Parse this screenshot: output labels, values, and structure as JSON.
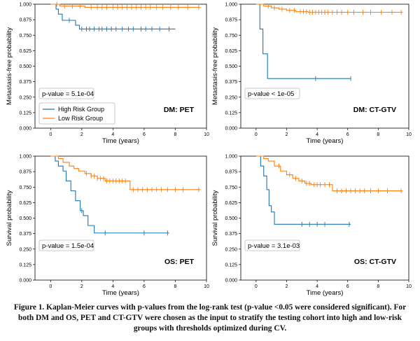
{
  "chart_data": [
    {
      "type": "line",
      "panel_label": "DM: PET",
      "xlabel": "Time (years)",
      "ylabel": "Metastasis-free probability",
      "xlim": [
        -1,
        10
      ],
      "ylim": [
        0,
        1
      ],
      "xticks": [
        "0",
        "2",
        "4",
        "6",
        "8",
        "10"
      ],
      "yticks": [
        "0.000",
        "0.125",
        "0.250",
        "0.375",
        "0.500",
        "0.625",
        "0.750",
        "0.875",
        "1.000"
      ],
      "pvalue": "p-value = 5.1e-04",
      "legend": [
        "High Risk Group",
        "Low Risk Group"
      ],
      "series": [
        {
          "name": "High Risk Group",
          "color": "#1f77b4",
          "steps": [
            [
              0,
              1
            ],
            [
              0.35,
              0.96
            ],
            [
              0.5,
              0.92
            ],
            [
              0.75,
              0.87
            ],
            [
              1.6,
              0.83
            ],
            [
              1.85,
              0.8
            ],
            [
              8,
              0.8
            ]
          ],
          "censors": [
            1.2,
            2.0,
            2.3,
            2.5,
            2.8,
            3.1,
            3.3,
            3.6,
            3.9,
            4.2,
            4.6,
            5.0,
            5.3,
            5.8,
            6.1,
            6.5,
            7.0,
            7.6
          ]
        },
        {
          "name": "Low Risk Group",
          "color": "#ff7f0e",
          "steps": [
            [
              0,
              1
            ],
            [
              0.6,
              0.985
            ],
            [
              2.2,
              0.975
            ],
            [
              9.6,
              0.975
            ]
          ],
          "censors": [
            0.4,
            0.9,
            1.4,
            1.9,
            2.6,
            3.0,
            3.3,
            3.6,
            4.0,
            4.3,
            4.6,
            4.9,
            5.2,
            5.5,
            5.8,
            6.1,
            6.4,
            6.8,
            7.2,
            7.7,
            8.2,
            8.8,
            9.5
          ]
        }
      ]
    },
    {
      "type": "line",
      "panel_label": "DM: CT-GTV",
      "xlabel": "Time (years)",
      "ylabel": "Metastasis-free probability",
      "xlim": [
        -1,
        10
      ],
      "ylim": [
        0,
        1
      ],
      "xticks": [
        "0",
        "2",
        "4",
        "6",
        "8",
        "10"
      ],
      "yticks": [
        "0.000",
        "0.125",
        "0.250",
        "0.375",
        "0.500",
        "0.625",
        "0.750",
        "0.875",
        "1.000"
      ],
      "pvalue": "p-value < 1e-05",
      "legend": [],
      "series": [
        {
          "name": "High Risk Group",
          "color": "#1f77b4",
          "steps": [
            [
              0,
              1
            ],
            [
              0.25,
              0.8
            ],
            [
              0.45,
              0.6
            ],
            [
              0.75,
              0.4
            ],
            [
              6.2,
              0.4
            ]
          ],
          "censors": [
            3.9,
            6.2
          ]
        },
        {
          "name": "Low Risk Group",
          "color": "#ff7f0e",
          "steps": [
            [
              0,
              1
            ],
            [
              0.5,
              0.985
            ],
            [
              1.0,
              0.97
            ],
            [
              1.5,
              0.96
            ],
            [
              2.0,
              0.95
            ],
            [
              2.6,
              0.94
            ],
            [
              3.4,
              0.935
            ],
            [
              9.6,
              0.935
            ]
          ],
          "censors": [
            0.8,
            1.2,
            1.7,
            2.2,
            2.5,
            2.9,
            3.1,
            3.3,
            3.5,
            3.7,
            3.9,
            4.1,
            4.3,
            4.5,
            4.7,
            5.0,
            5.3,
            5.6,
            6.0,
            6.4,
            7.0,
            7.5,
            8.2,
            8.9,
            9.5
          ]
        }
      ]
    },
    {
      "type": "line",
      "panel_label": "OS: PET",
      "xlabel": "Time (years)",
      "ylabel": "Survival probability",
      "xlim": [
        -1,
        10
      ],
      "ylim": [
        0,
        1
      ],
      "xticks": [
        "0",
        "2",
        "4",
        "6",
        "8",
        "10"
      ],
      "yticks": [
        "0.000",
        "0.125",
        "0.250",
        "0.375",
        "0.500",
        "0.625",
        "0.750",
        "0.875",
        "1.000"
      ],
      "pvalue": "p-value = 1.5e-04",
      "legend": [],
      "series": [
        {
          "name": "High Risk Group",
          "color": "#1f77b4",
          "steps": [
            [
              0,
              1
            ],
            [
              0.3,
              0.96
            ],
            [
              0.5,
              0.92
            ],
            [
              0.8,
              0.88
            ],
            [
              1.0,
              0.8
            ],
            [
              1.3,
              0.72
            ],
            [
              1.6,
              0.64
            ],
            [
              1.9,
              0.56
            ],
            [
              2.1,
              0.52
            ],
            [
              2.4,
              0.44
            ],
            [
              2.8,
              0.38
            ],
            [
              7.6,
              0.38
            ]
          ],
          "censors": [
            2.0,
            3.5,
            6.0,
            7.5
          ]
        },
        {
          "name": "Low Risk Group",
          "color": "#ff7f0e",
          "steps": [
            [
              0,
              1
            ],
            [
              0.5,
              0.98
            ],
            [
              0.8,
              0.95
            ],
            [
              1.2,
              0.92
            ],
            [
              1.5,
              0.9
            ],
            [
              1.8,
              0.88
            ],
            [
              2.2,
              0.86
            ],
            [
              2.6,
              0.84
            ],
            [
              3.0,
              0.82
            ],
            [
              3.5,
              0.8
            ],
            [
              5.1,
              0.73
            ],
            [
              9.6,
              0.73
            ]
          ],
          "censors": [
            2.3,
            2.6,
            2.8,
            3.0,
            3.2,
            3.4,
            3.6,
            3.8,
            4.0,
            4.2,
            4.4,
            4.6,
            4.8,
            5.3,
            5.6,
            5.9,
            6.2,
            6.5,
            6.8,
            7.1,
            7.5,
            8.0,
            8.5,
            9.5
          ]
        }
      ]
    },
    {
      "type": "line",
      "panel_label": "OS: CT-GTV",
      "xlabel": "Time (years)",
      "ylabel": "Survival probability",
      "xlim": [
        -1,
        10
      ],
      "ylim": [
        0,
        1
      ],
      "xticks": [
        "0",
        "2",
        "4",
        "6",
        "8",
        "10"
      ],
      "yticks": [
        "0.000",
        "0.125",
        "0.250",
        "0.375",
        "0.500",
        "0.625",
        "0.750",
        "0.875",
        "1.000"
      ],
      "pvalue": "p-value = 3.1e-03",
      "legend": [],
      "series": [
        {
          "name": "High Risk Group",
          "color": "#1f77b4",
          "steps": [
            [
              0,
              1
            ],
            [
              0.3,
              0.92
            ],
            [
              0.5,
              0.84
            ],
            [
              0.7,
              0.73
            ],
            [
              0.85,
              0.6
            ],
            [
              1.0,
              0.55
            ],
            [
              1.2,
              0.45
            ],
            [
              6.2,
              0.45
            ]
          ],
          "censors": [
            3.0,
            3.5,
            4.0,
            4.5,
            6.1
          ]
        },
        {
          "name": "Low Risk Group",
          "color": "#ff7f0e",
          "steps": [
            [
              0,
              1
            ],
            [
              0.5,
              0.98
            ],
            [
              0.8,
              0.96
            ],
            [
              1.2,
              0.92
            ],
            [
              1.6,
              0.88
            ],
            [
              2.0,
              0.85
            ],
            [
              2.4,
              0.82
            ],
            [
              2.8,
              0.8
            ],
            [
              3.2,
              0.78
            ],
            [
              3.6,
              0.77
            ],
            [
              5.0,
              0.72
            ],
            [
              9.6,
              0.72
            ]
          ],
          "censors": [
            1.5,
            2.2,
            2.6,
            3.0,
            3.3,
            3.5,
            3.8,
            4.0,
            4.2,
            4.5,
            4.8,
            5.3,
            5.6,
            5.9,
            6.2,
            6.5,
            6.8,
            7.1,
            7.5,
            8.0,
            8.6,
            9.5
          ]
        }
      ]
    }
  ],
  "caption": "Figure 1. Kaplan-Meier curves with p-values from the log-rank test (p-value <0.05 were considered significant). For both DM and OS, PET and CT-GTV were chosen as the input to stratify the testing cohort into high and low-risk groups with thresholds optimized during CV."
}
